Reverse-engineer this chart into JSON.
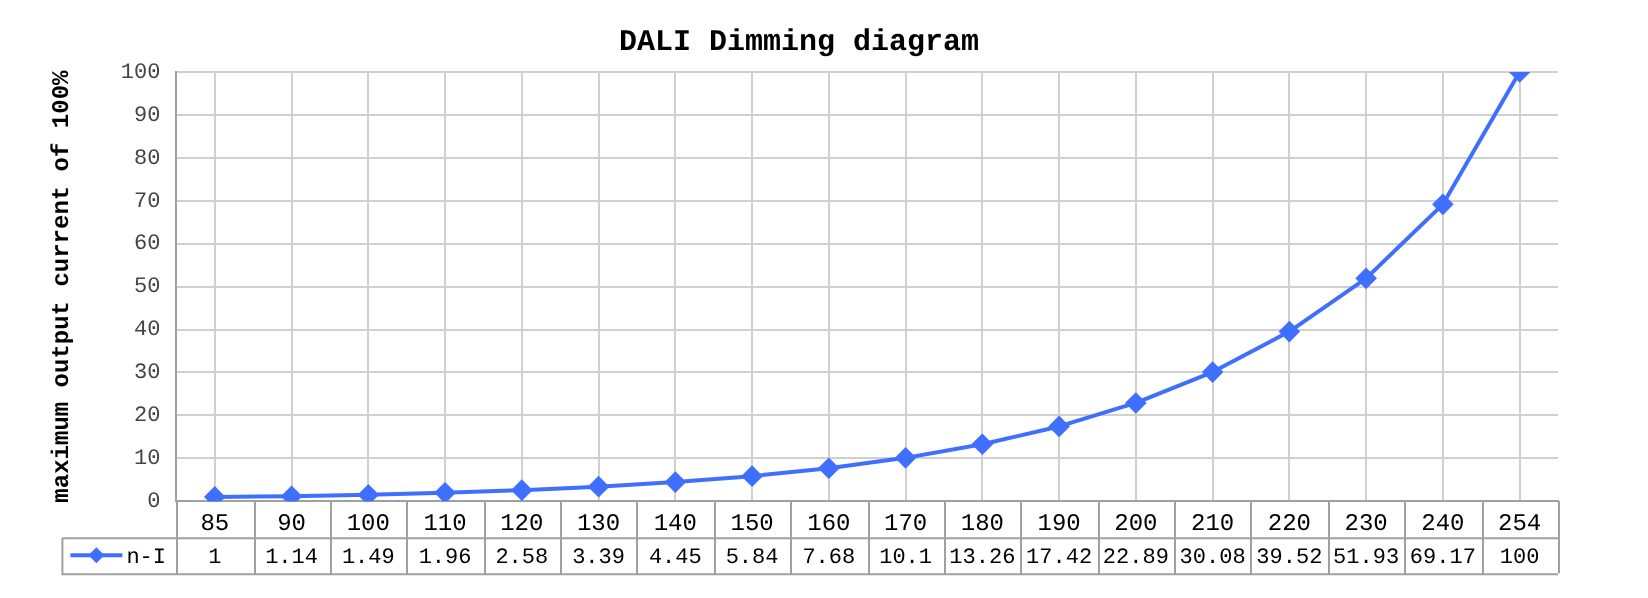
{
  "chart_data": {
    "type": "line",
    "title": "DALI Dimming diagram",
    "ylabel": "maximum output current of 100%",
    "categories": [
      "85",
      "90",
      "100",
      "110",
      "120",
      "130",
      "140",
      "150",
      "160",
      "170",
      "180",
      "190",
      "200",
      "210",
      "220",
      "230",
      "240",
      "254"
    ],
    "series": [
      {
        "name": "n-I",
        "color": "#3f6fff",
        "values": [
          1,
          1.14,
          1.49,
          1.96,
          2.58,
          3.39,
          4.45,
          5.84,
          7.68,
          10.1,
          13.26,
          17.42,
          22.89,
          30.08,
          39.52,
          51.93,
          69.17,
          100
        ]
      }
    ],
    "ylim": [
      0,
      100
    ],
    "yticks": [
      0,
      10,
      20,
      30,
      40,
      50,
      60,
      70,
      80,
      90,
      100
    ],
    "grid": true,
    "legend": "bottom",
    "marker": "diamond",
    "line_style": "solid",
    "data_labels": true
  }
}
